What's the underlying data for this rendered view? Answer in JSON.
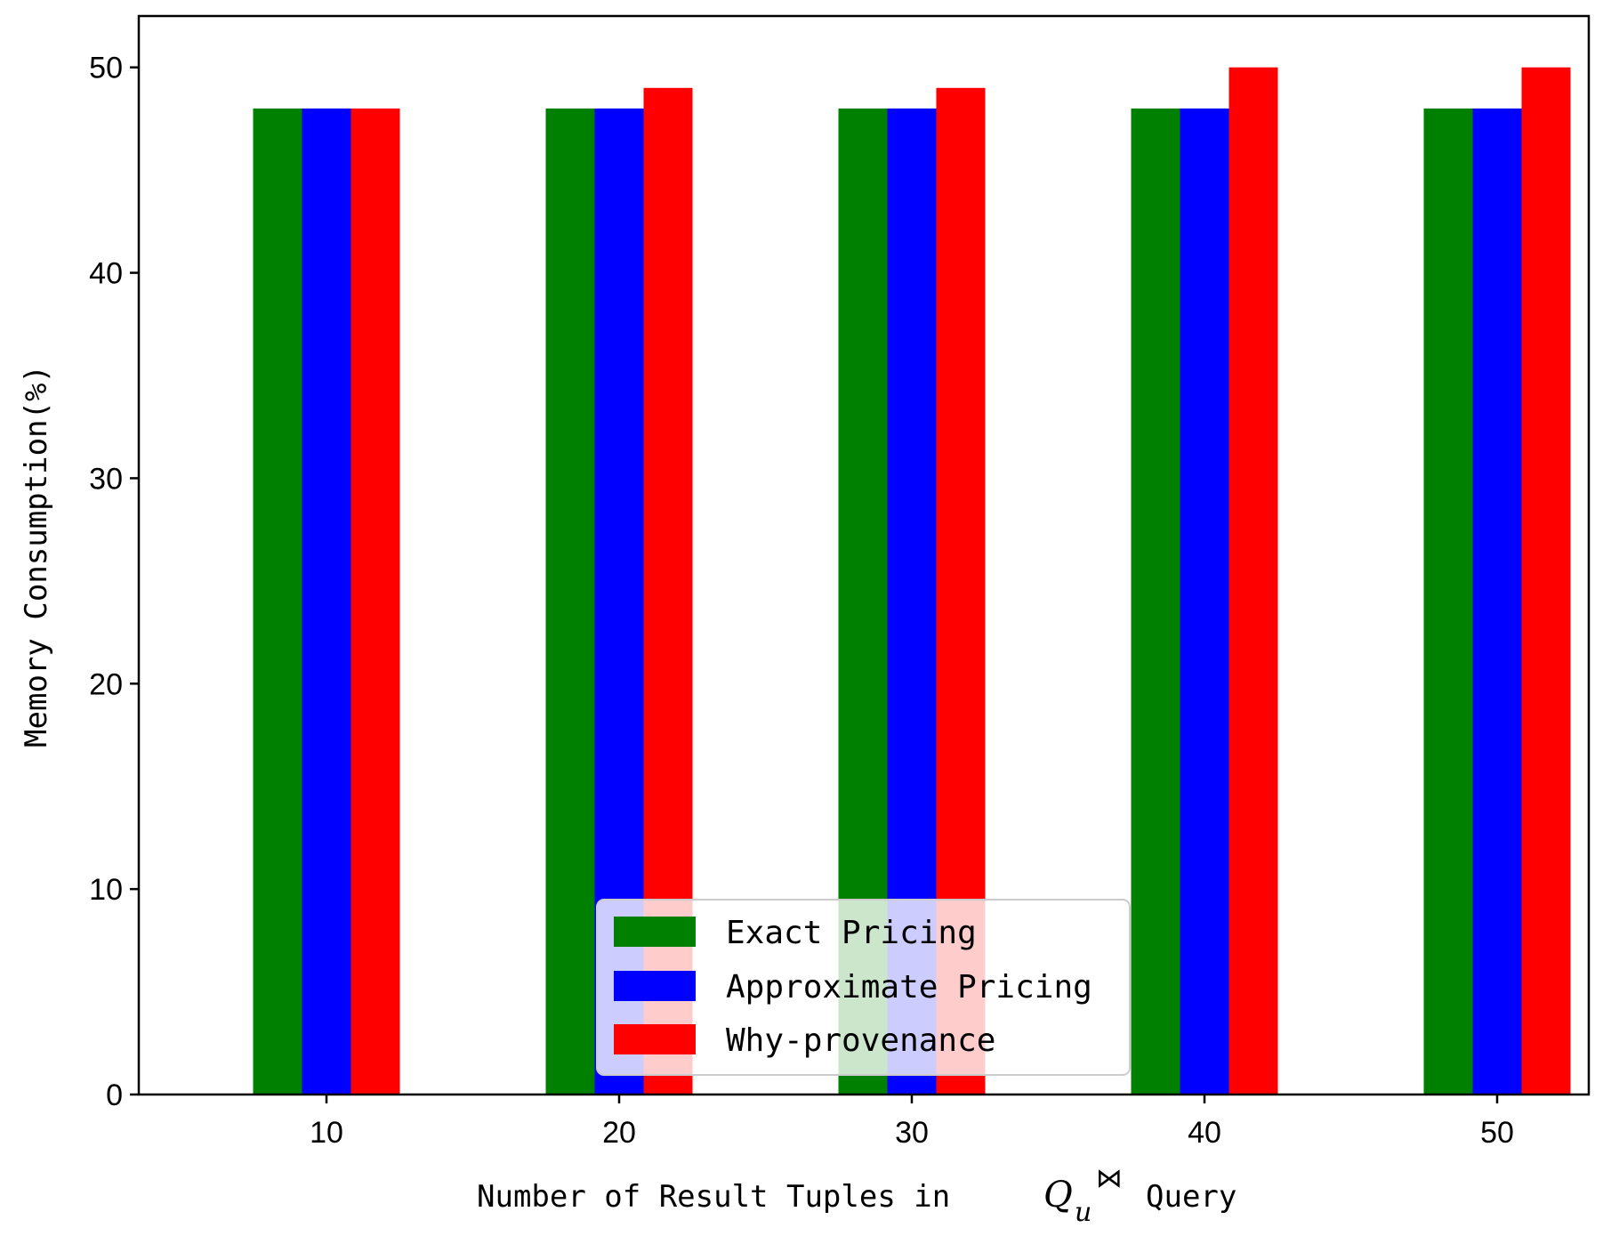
{
  "chart_data": {
    "type": "bar",
    "title": "",
    "xlabel_prefix": "Number of Result Tuples in",
    "xlabel_symbol": "Q",
    "xlabel_subscript": "u",
    "xlabel_superscript": "⋈",
    "xlabel_suffix": "Query",
    "ylabel": "Memory Consumption(%)",
    "categories": [
      "10",
      "20",
      "30",
      "40",
      "50"
    ],
    "ylim": [
      0,
      52.5
    ],
    "yticks": [
      0,
      10,
      20,
      30,
      40,
      50
    ],
    "grid": false,
    "legend_position": "lower-center",
    "series": [
      {
        "name": "Exact Pricing",
        "color": "#008000",
        "values": [
          48,
          48,
          48,
          48,
          48
        ]
      },
      {
        "name": "Approximate Pricing",
        "color": "#0000ff",
        "values": [
          48,
          48,
          48,
          48,
          48
        ]
      },
      {
        "name": "Why-provenance",
        "color": "#ff0000",
        "values": [
          48,
          49,
          49,
          50,
          50
        ]
      }
    ]
  }
}
